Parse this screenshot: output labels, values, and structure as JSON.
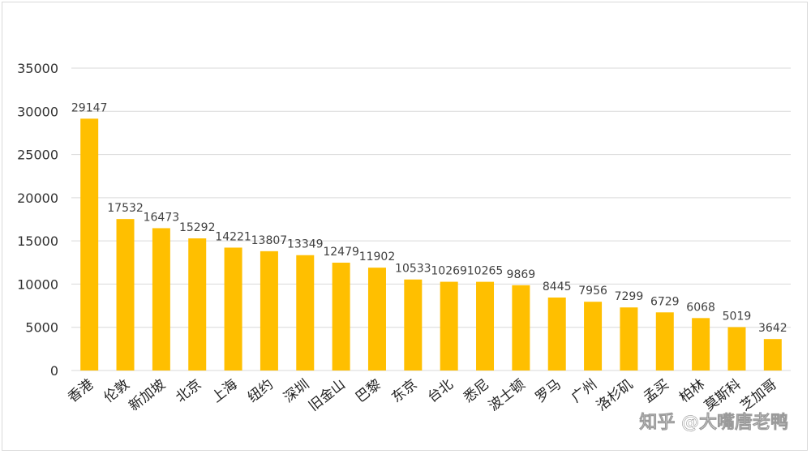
{
  "chart_data": {
    "type": "bar",
    "categories": [
      "香港",
      "伦敦",
      "新加坡",
      "北京",
      "上海",
      "纽约",
      "深圳",
      "旧金山",
      "巴黎",
      "东京",
      "台北",
      "悉尼",
      "波士顿",
      "罗马",
      "广州",
      "洛杉矶",
      "孟买",
      "柏林",
      "莫斯科",
      "芝加哥"
    ],
    "values": [
      29147,
      17532,
      16473,
      15292,
      14221,
      13807,
      13349,
      12479,
      11902,
      10533,
      10269,
      10265,
      9869,
      8445,
      7956,
      7299,
      6729,
      6068,
      5019,
      3642
    ],
    "title": "",
    "xlabel": "",
    "ylabel": "",
    "ylim": [
      0,
      35000
    ],
    "yticks": [
      0,
      5000,
      10000,
      15000,
      20000,
      25000,
      30000,
      35000
    ],
    "grid": true,
    "bar_color": "#FFBF00",
    "grid_color": "#d9d9d9"
  },
  "watermark": "知乎 @大嘴唐老鸭"
}
